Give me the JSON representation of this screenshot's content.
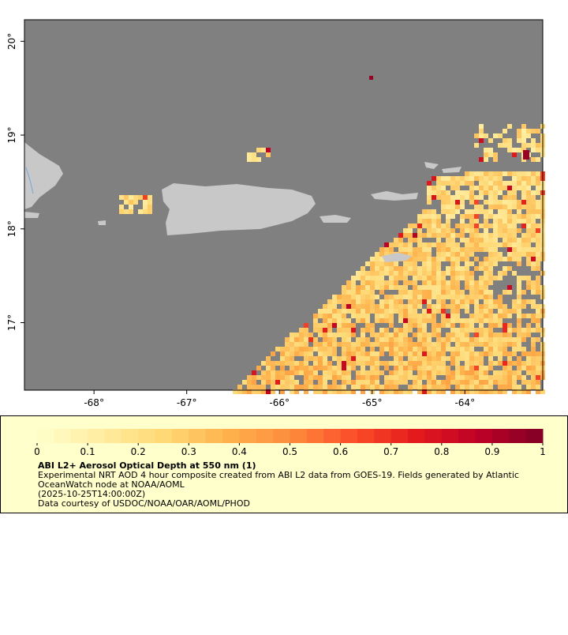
{
  "map": {
    "xlim": [
      -68.75,
      -63.16
    ],
    "ylim": [
      16.28,
      20.23
    ],
    "xticks": [
      {
        "value": -68,
        "label": "-68°"
      },
      {
        "value": -67,
        "label": "-67°"
      },
      {
        "value": -66,
        "label": "-66°"
      },
      {
        "value": -65,
        "label": "-65°"
      },
      {
        "value": -64,
        "label": "-64°"
      }
    ],
    "yticks": [
      {
        "value": 17,
        "label": "17°"
      },
      {
        "value": 18,
        "label": "18°"
      },
      {
        "value": 19,
        "label": "19°"
      },
      {
        "value": 20,
        "label": "20°"
      }
    ]
  },
  "colorbar": {
    "lim": [
      0,
      1
    ],
    "ticks": [
      0,
      0.1,
      0.2,
      0.3,
      0.4,
      0.5,
      0.6,
      0.7,
      0.8,
      0.9,
      1
    ]
  },
  "caption": {
    "title": "ABI L2+ Aerosol Optical Depth at 550 nm (1)",
    "lines": [
      "Experimental NRT AOD 4 hour composite created from ABI L2 data from GOES-19. Fields generated by Atlantic",
      "OceanWatch node at NOAA/AOML",
      "(2025-10-25T14:00:00Z)",
      "Data courtesy of USDOC/NOAA/OAR/AOML/PHOD"
    ]
  }
}
